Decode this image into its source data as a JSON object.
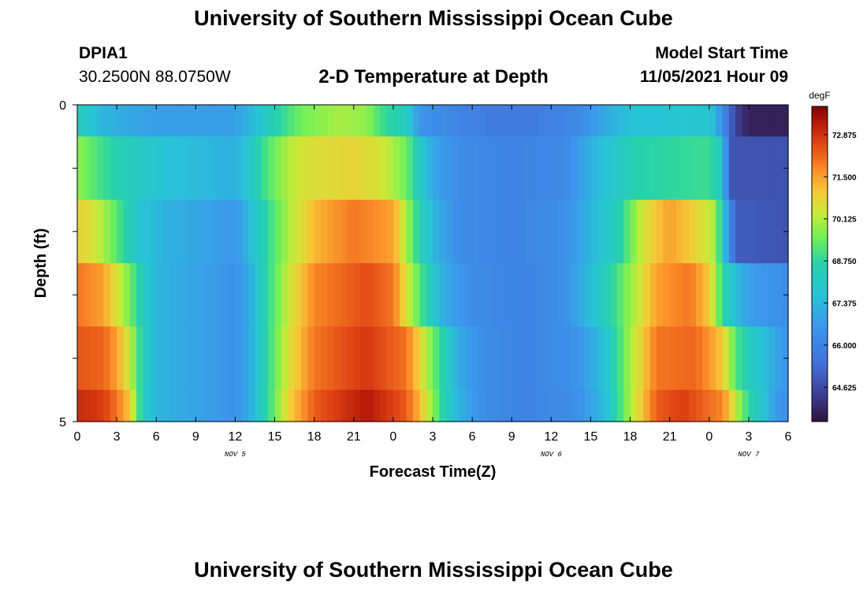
{
  "header": {
    "title": "University of Southern Mississippi Ocean Cube",
    "station": "DPIA1",
    "coordinates": "30.2500N  88.0750W",
    "subtitle": "2-D Temperature at Depth",
    "model_start_label": "Model Start Time",
    "model_start_value": "11/05/2021 Hour 09"
  },
  "footer": {
    "title": "University of Southern Mississippi Ocean Cube"
  },
  "chart_data": {
    "type": "heatmap",
    "title": "2-D Temperature at Depth",
    "xlabel": "Forecast Time(Z)",
    "ylabel": "Depth (ft)",
    "x_tick_labels": [
      "0",
      "3",
      "6",
      "9",
      "12",
      "15",
      "18",
      "21",
      "0",
      "3",
      "6",
      "9",
      "12",
      "15",
      "18",
      "21",
      "0",
      "3",
      "6"
    ],
    "x_range_hours": [
      0,
      54
    ],
    "y_tick_labels": [
      "0",
      "5"
    ],
    "y_range_ft": [
      0,
      5
    ],
    "date_labels": [
      {
        "text": "NOV 5",
        "hour": 12
      },
      {
        "text": "NOV 6",
        "hour": 36
      },
      {
        "text": "NOV 7",
        "hour": 51
      }
    ],
    "colorbar": {
      "unit": "degF",
      "min": 63.5,
      "max": 73.8,
      "tick_labels": [
        "72.875",
        "71.500",
        "70.125",
        "68.750",
        "67.375",
        "66.000",
        "64.625"
      ],
      "tick_values": [
        72.875,
        71.5,
        70.125,
        68.75,
        67.375,
        66.0,
        64.625
      ]
    },
    "depth_rows": [
      {
        "depth_range": [
          0,
          0.5
        ],
        "keyframes": [
          [
            0,
            68.2
          ],
          [
            1,
            67.8
          ],
          [
            2,
            67.3
          ],
          [
            4,
            67.0
          ],
          [
            6,
            66.8
          ],
          [
            12,
            66.8
          ],
          [
            13.5,
            67.5
          ],
          [
            15,
            68.5
          ],
          [
            17,
            69.5
          ],
          [
            20,
            70.0
          ],
          [
            22,
            69.8
          ],
          [
            23,
            69.0
          ],
          [
            25,
            68.2
          ],
          [
            26,
            66.5
          ],
          [
            28,
            66.2
          ],
          [
            31,
            65.8
          ],
          [
            35,
            65.8
          ],
          [
            38,
            66.2
          ],
          [
            40,
            67.0
          ],
          [
            42,
            67.6
          ],
          [
            48,
            67.8
          ],
          [
            48.5,
            67.2
          ],
          [
            49,
            66.3
          ],
          [
            50,
            64.5
          ],
          [
            51,
            63.8
          ],
          [
            54,
            63.8
          ]
        ]
      },
      {
        "depth_range": [
          0.5,
          1.5
        ],
        "keyframes": [
          [
            0,
            69.8
          ],
          [
            1,
            69.3
          ],
          [
            3,
            68.5
          ],
          [
            5,
            68.0
          ],
          [
            7,
            67.6
          ],
          [
            12,
            67.2
          ],
          [
            13,
            67.8
          ],
          [
            14,
            68.8
          ],
          [
            15.5,
            69.8
          ],
          [
            17,
            70.5
          ],
          [
            21,
            70.8
          ],
          [
            23,
            70.5
          ],
          [
            25,
            69.5
          ],
          [
            26,
            68.0
          ],
          [
            27,
            67.0
          ],
          [
            29,
            66.3
          ],
          [
            33,
            66.0
          ],
          [
            37,
            66.2
          ],
          [
            39,
            67.2
          ],
          [
            41,
            68.0
          ],
          [
            42.5,
            68.6
          ],
          [
            48,
            68.9
          ],
          [
            49,
            68.0
          ],
          [
            49.5,
            65.0
          ],
          [
            50,
            64.8
          ],
          [
            54,
            64.8
          ]
        ]
      },
      {
        "depth_range": [
          1.5,
          2.5
        ],
        "keyframes": [
          [
            0,
            70.8
          ],
          [
            1,
            70.6
          ],
          [
            2,
            70.0
          ],
          [
            3,
            69.2
          ],
          [
            4,
            68.3
          ],
          [
            5,
            67.6
          ],
          [
            7,
            67.2
          ],
          [
            12,
            66.6
          ],
          [
            13,
            67.3
          ],
          [
            14.5,
            68.8
          ],
          [
            16,
            70.0
          ],
          [
            18,
            71.2
          ],
          [
            21,
            72.0
          ],
          [
            24,
            71.5
          ],
          [
            25,
            70.0
          ],
          [
            26,
            68.5
          ],
          [
            27,
            67.4
          ],
          [
            29,
            66.3
          ],
          [
            33,
            66.0
          ],
          [
            37,
            66.4
          ],
          [
            39,
            67.3
          ],
          [
            41,
            68.3
          ],
          [
            43,
            70.5
          ],
          [
            45,
            71.5
          ],
          [
            47,
            70.8
          ],
          [
            48.5,
            70.0
          ],
          [
            49,
            68.0
          ],
          [
            50,
            65.0
          ],
          [
            54,
            64.8
          ]
        ]
      },
      {
        "depth_range": [
          2.5,
          3.5
        ],
        "keyframes": [
          [
            0,
            72.0
          ],
          [
            2,
            71.5
          ],
          [
            3,
            70.5
          ],
          [
            4,
            69.5
          ],
          [
            5,
            68.2
          ],
          [
            6,
            67.3
          ],
          [
            12,
            66.5
          ],
          [
            13,
            67.0
          ],
          [
            14.5,
            68.8
          ],
          [
            16,
            70.3
          ],
          [
            18,
            71.8
          ],
          [
            22,
            72.5
          ],
          [
            24,
            72.0
          ],
          [
            25,
            70.5
          ],
          [
            26,
            69.2
          ],
          [
            27,
            68.0
          ],
          [
            28,
            67.0
          ],
          [
            30,
            66.3
          ],
          [
            34,
            66.0
          ],
          [
            37,
            66.4
          ],
          [
            39,
            67.5
          ],
          [
            41,
            69.0
          ],
          [
            44,
            71.5
          ],
          [
            46.5,
            72.0
          ],
          [
            48,
            71.0
          ],
          [
            49,
            68.8
          ],
          [
            50,
            67.5
          ],
          [
            51,
            66.8
          ],
          [
            54,
            66.3
          ]
        ]
      },
      {
        "depth_range": [
          3.5,
          4.5
        ],
        "keyframes": [
          [
            0,
            72.4
          ],
          [
            2,
            72.2
          ],
          [
            3,
            71.5
          ],
          [
            4,
            70.3
          ],
          [
            5,
            68.3
          ],
          [
            6,
            67.3
          ],
          [
            12,
            66.5
          ],
          [
            13,
            67.0
          ],
          [
            14.5,
            68.8
          ],
          [
            16,
            70.5
          ],
          [
            18,
            72.0
          ],
          [
            22,
            72.8
          ],
          [
            25,
            72.0
          ],
          [
            26,
            70.8
          ],
          [
            27,
            69.5
          ],
          [
            28,
            68.3
          ],
          [
            29,
            67.0
          ],
          [
            31,
            66.3
          ],
          [
            34,
            66.0
          ],
          [
            38,
            66.5
          ],
          [
            40,
            67.6
          ],
          [
            42,
            70.0
          ],
          [
            44,
            72.0
          ],
          [
            47,
            72.2
          ],
          [
            49,
            71.0
          ],
          [
            50,
            69.2
          ],
          [
            51,
            68.2
          ],
          [
            53,
            67.0
          ],
          [
            54,
            66.5
          ]
        ]
      },
      {
        "depth_range": [
          4.5,
          5.0
        ],
        "keyframes": [
          [
            0,
            73.0
          ],
          [
            2,
            72.7
          ],
          [
            3,
            72.0
          ],
          [
            4,
            71.0
          ],
          [
            4.5,
            69.5
          ],
          [
            5,
            68.2
          ],
          [
            6,
            67.3
          ],
          [
            12,
            66.5
          ],
          [
            13,
            67.0
          ],
          [
            14.5,
            68.8
          ],
          [
            16,
            70.8
          ],
          [
            18,
            72.3
          ],
          [
            22,
            73.3
          ],
          [
            25,
            72.3
          ],
          [
            26,
            71.2
          ],
          [
            27,
            69.8
          ],
          [
            28,
            68.3
          ],
          [
            29,
            67.2
          ],
          [
            31,
            66.3
          ],
          [
            34,
            66.0
          ],
          [
            38,
            66.4
          ],
          [
            40,
            67.4
          ],
          [
            42,
            70.0
          ],
          [
            44,
            72.3
          ],
          [
            46,
            72.7
          ],
          [
            49,
            71.8
          ],
          [
            50,
            70.3
          ],
          [
            51,
            68.7
          ],
          [
            52,
            67.8
          ],
          [
            53,
            66.8
          ],
          [
            54,
            66.3
          ]
        ]
      }
    ]
  }
}
